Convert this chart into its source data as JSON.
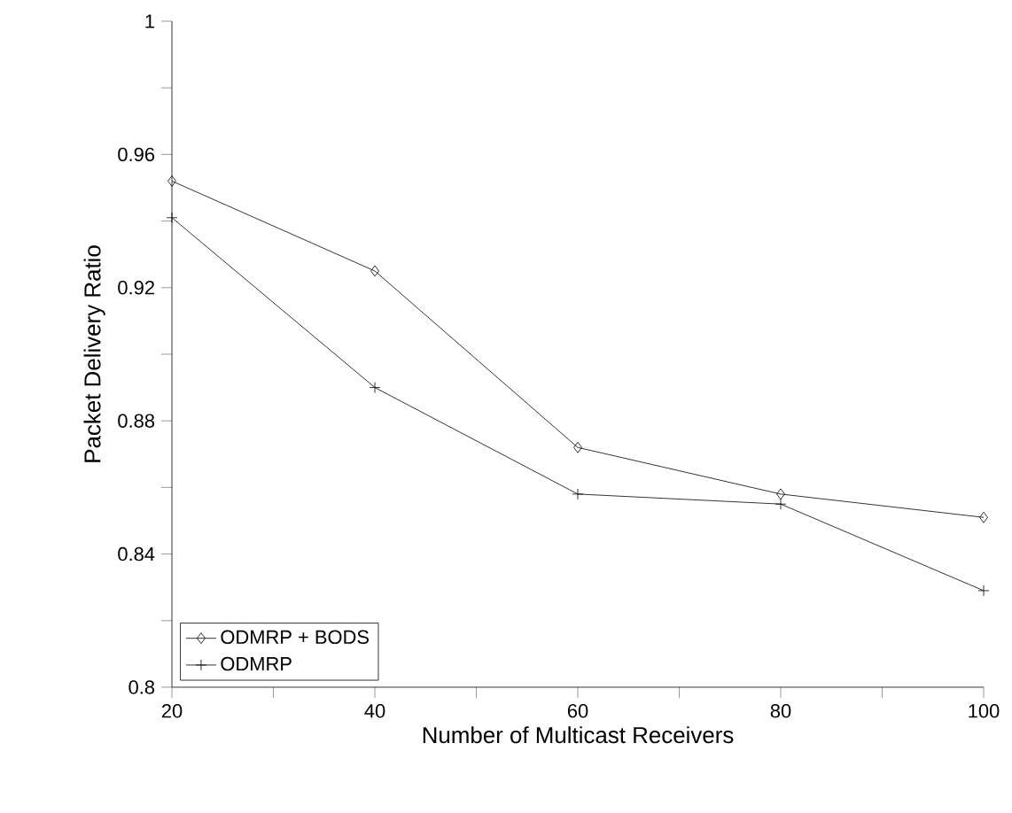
{
  "chart_data": {
    "type": "line",
    "xlabel": "Number of Multicast Receivers",
    "ylabel": "Packet Delivery Ratio",
    "x": [
      20,
      40,
      60,
      80,
      100
    ],
    "series": [
      {
        "name": "ODMRP + BODS",
        "color": "#000000",
        "marker": "diamond",
        "values": [
          0.952,
          0.925,
          0.872,
          0.858,
          0.851
        ]
      },
      {
        "name": "ODMRP",
        "color": "#000000",
        "marker": "cross",
        "values": [
          0.941,
          0.89,
          0.858,
          0.855,
          0.829
        ]
      }
    ],
    "xlim": [
      20,
      100
    ],
    "xticks": [
      20,
      40,
      60,
      80,
      100
    ],
    "ylim": [
      0.8,
      1
    ],
    "yticks": [
      0.8,
      0.84,
      0.88,
      0.92,
      0.96,
      1
    ],
    "grid": false,
    "legend": "bottom left",
    "line_style": "solid"
  }
}
